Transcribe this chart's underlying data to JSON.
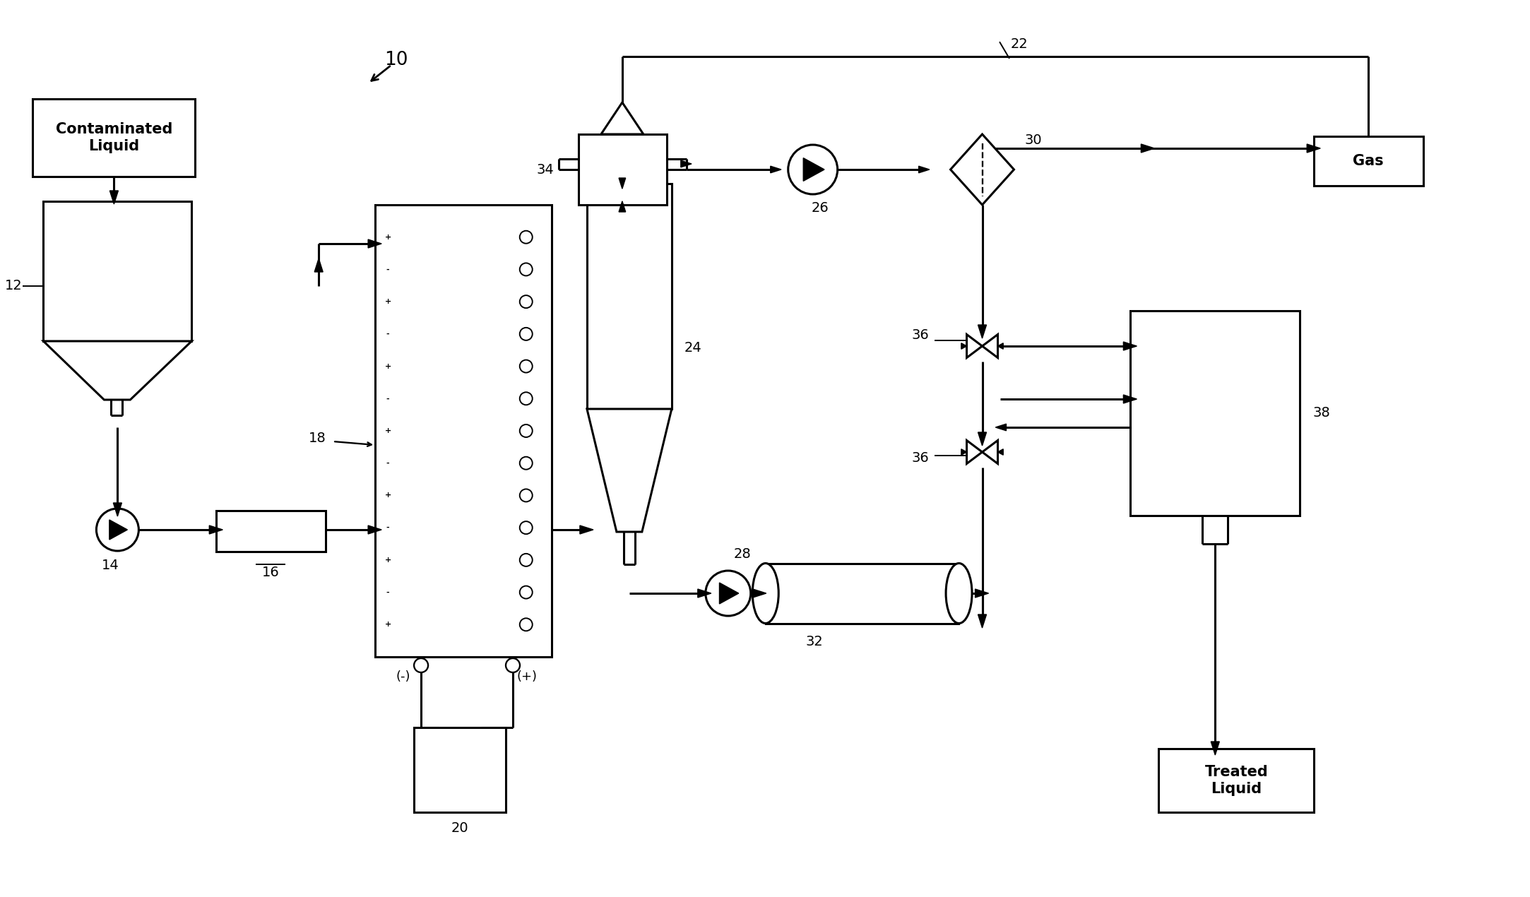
{
  "bg_color": "#ffffff",
  "lw": 2.2,
  "lw_thin": 1.4,
  "fs": 15,
  "fsn": 14,
  "figw": 21.66,
  "figh": 12.7,
  "dpi": 100,
  "labels": {
    "sys": "10",
    "recycle": "22",
    "tank": "12",
    "pump1": "14",
    "meter": "16",
    "ec": "18",
    "psu": "20",
    "cav": "24",
    "pump2": "26",
    "pump3": "28",
    "sep": "30",
    "reactor": "32",
    "deg": "34",
    "v1": "36",
    "v2": "36",
    "tk2": "38",
    "contam": "Contaminated\nLiquid",
    "gas": "Gas",
    "treated": "Treated\nLiquid",
    "neg": "(-)",
    "pos": "(+)"
  }
}
